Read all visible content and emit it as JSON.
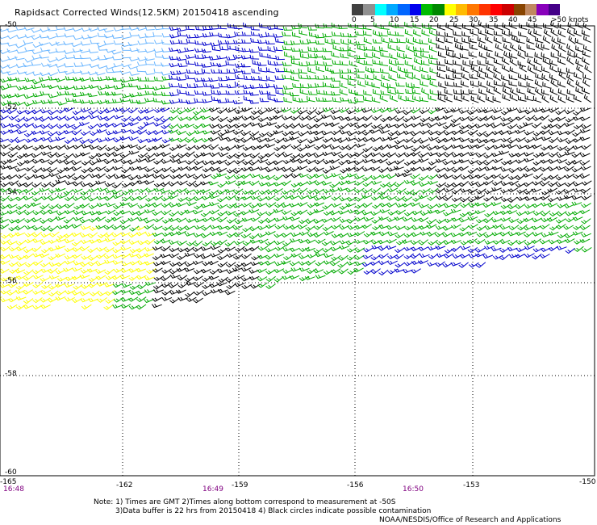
{
  "title": "Rapidsact Corrected Winds(12.5KM) 20150418 ascending",
  "legend": {
    "labels": [
      "0",
      "5",
      "10",
      "15",
      "20",
      "25",
      "30",
      "35",
      "40",
      "45",
      ">50 knots"
    ],
    "colors": [
      "#404040",
      "#909090",
      "#00ffff",
      "#00aaff",
      "#0066ff",
      "#0000ee",
      "#00bb00",
      "#008800",
      "#ffff00",
      "#ffbb00",
      "#ff7700",
      "#ff3300",
      "#ff0000",
      "#cc0000",
      "#884400",
      "#c08860",
      "#8800bb",
      "#440088"
    ]
  },
  "axes": {
    "y_labels": [
      "-50",
      "-52",
      "-54",
      "-56",
      "-58",
      "-60"
    ],
    "x_labels": [
      "-165",
      "-162",
      "-159",
      "-156",
      "-153",
      "-150"
    ]
  },
  "times": [
    "16:48",
    "16:49",
    "16:50"
  ],
  "note_line1": "Note: 1) Times are GMT 2)Times along bottom correspond to measurement at -50S",
  "note_line2": "3)Data buffer is 22 hrs from 20150418 4) Black circles indicate possible contamination",
  "credit": "NOAA/NESDIS/Office of Research and Applications",
  "wind_colors": {
    "calm": "#000000",
    "light": "#6bb6ff",
    "blue": "#0000cc",
    "green": "#00aa00",
    "yellow": "#ffff00"
  }
}
